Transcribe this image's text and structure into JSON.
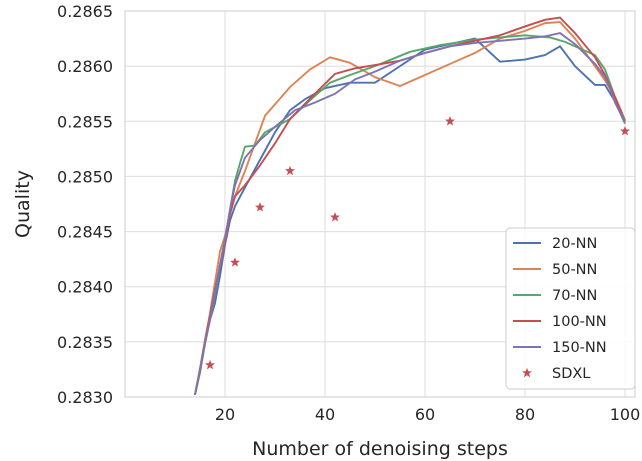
{
  "chart_data": {
    "type": "line",
    "title": "",
    "xlabel": "Number of denoising steps",
    "ylabel": "Quality",
    "xlim": [
      0,
      102
    ],
    "ylim": [
      0.283,
      0.2865
    ],
    "xticks": [
      20,
      40,
      60,
      80,
      100
    ],
    "xtick_labels": [
      "20",
      "40",
      "60",
      "80",
      "100"
    ],
    "yticks": [
      0.283,
      0.2835,
      0.284,
      0.2845,
      0.285,
      0.2855,
      0.286,
      0.2865
    ],
    "ytick_labels": [
      "0.2830",
      "0.2835",
      "0.2840",
      "0.2845",
      "0.2850",
      "0.2855",
      "0.2860",
      "0.2865"
    ],
    "grid": true,
    "legend_position": "lower-right",
    "series": [
      {
        "name": "20-NN",
        "kind": "line",
        "color": "#4c72b0",
        "x": [
          14,
          15,
          16,
          17,
          18,
          19,
          20,
          21,
          22,
          24,
          27,
          30,
          33,
          36,
          40,
          45,
          50,
          55,
          60,
          65,
          70,
          75,
          80,
          84,
          87,
          90,
          94,
          96,
          98,
          99,
          100
        ],
        "y": [
          0.28302,
          0.28325,
          0.2835,
          0.2837,
          0.28385,
          0.2841,
          0.28438,
          0.2846,
          0.28473,
          0.2849,
          0.28515,
          0.2854,
          0.2856,
          0.2857,
          0.2858,
          0.28585,
          0.28585,
          0.286,
          0.28615,
          0.2862,
          0.28625,
          0.28604,
          0.28606,
          0.2861,
          0.28618,
          0.286,
          0.28583,
          0.28583,
          0.28568,
          0.28558,
          0.28548
        ]
      },
      {
        "name": "50-NN",
        "kind": "line",
        "color": "#dd8452",
        "x": [
          14,
          15,
          16,
          17,
          18,
          19,
          20,
          21,
          22,
          24,
          26,
          28,
          33,
          37,
          41,
          45,
          50,
          55,
          60,
          65,
          70,
          75,
          80,
          84,
          87,
          90,
          94,
          96,
          98,
          99,
          100
        ],
        "y": [
          0.28302,
          0.28326,
          0.28352,
          0.28376,
          0.28404,
          0.28432,
          0.28446,
          0.28466,
          0.28482,
          0.28505,
          0.2853,
          0.28555,
          0.28581,
          0.28597,
          0.28608,
          0.28603,
          0.2859,
          0.28582,
          0.28592,
          0.28602,
          0.28612,
          0.28625,
          0.28632,
          0.28639,
          0.2864,
          0.28625,
          0.286,
          0.28587,
          0.28572,
          0.28562,
          0.28551
        ]
      },
      {
        "name": "70-NN",
        "kind": "line",
        "color": "#55a868",
        "x": [
          14,
          15,
          16,
          17,
          18,
          19,
          20,
          21,
          22,
          23,
          24,
          26,
          28,
          33,
          37,
          41,
          45,
          50,
          57,
          63,
          70,
          75,
          80,
          85,
          88,
          91,
          94,
          96,
          98,
          99,
          100
        ],
        "y": [
          0.28302,
          0.28322,
          0.28348,
          0.2837,
          0.28393,
          0.2842,
          0.28443,
          0.2847,
          0.28496,
          0.28512,
          0.28527,
          0.28528,
          0.2854,
          0.28552,
          0.28569,
          0.28585,
          0.28592,
          0.286,
          0.28613,
          0.28619,
          0.28624,
          0.28626,
          0.28628,
          0.28626,
          0.28622,
          0.28616,
          0.2861,
          0.28597,
          0.28572,
          0.2856,
          0.28548
        ]
      },
      {
        "name": "100-NN",
        "kind": "line",
        "color": "#c44e52",
        "x": [
          14,
          15,
          16,
          17,
          18,
          19,
          20,
          21,
          22,
          24,
          27,
          30,
          33,
          38,
          42,
          46,
          50,
          55,
          60,
          65,
          70,
          75,
          80,
          84,
          87,
          90,
          94,
          96,
          98,
          99,
          100
        ],
        "y": [
          0.28302,
          0.28324,
          0.2835,
          0.28374,
          0.28398,
          0.28418,
          0.2844,
          0.28466,
          0.28482,
          0.28492,
          0.2851,
          0.2853,
          0.28552,
          0.28575,
          0.28593,
          0.28598,
          0.28601,
          0.28605,
          0.28612,
          0.28618,
          0.28623,
          0.28628,
          0.28636,
          0.28642,
          0.28644,
          0.2863,
          0.28608,
          0.28592,
          0.28572,
          0.28561,
          0.2855
        ]
      },
      {
        "name": "150-NN",
        "kind": "line",
        "color": "#8172b3",
        "x": [
          14,
          15,
          16,
          17,
          18,
          19,
          20,
          21,
          22,
          24,
          27,
          30,
          34,
          38,
          42,
          46,
          50,
          55,
          60,
          65,
          70,
          75,
          80,
          84,
          87,
          90,
          94,
          96,
          97,
          98,
          99,
          100
        ],
        "y": [
          0.28302,
          0.28325,
          0.28349,
          0.2837,
          0.28395,
          0.2842,
          0.28443,
          0.2847,
          0.28492,
          0.28517,
          0.28533,
          0.28545,
          0.2856,
          0.28567,
          0.28575,
          0.28588,
          0.28595,
          0.28605,
          0.28612,
          0.28618,
          0.28621,
          0.28623,
          0.28625,
          0.28627,
          0.2863,
          0.2862,
          0.28602,
          0.2859,
          0.2858,
          0.28567,
          0.28558,
          0.28551
        ]
      },
      {
        "name": "SDXL",
        "kind": "scatter",
        "color": "#c44e52",
        "x": [
          17,
          22,
          27,
          33,
          42,
          65,
          100
        ],
        "y": [
          0.28329,
          0.28422,
          0.28472,
          0.28505,
          0.28463,
          0.2855,
          0.28541
        ]
      }
    ]
  }
}
